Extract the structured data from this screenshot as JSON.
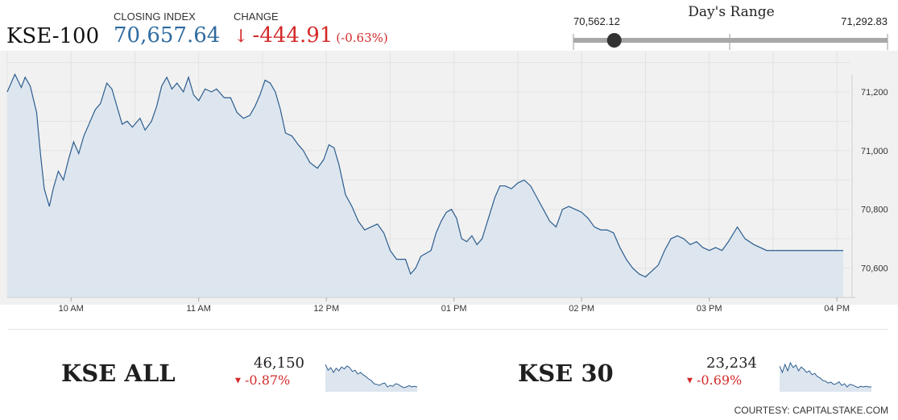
{
  "header": {
    "index_name": "KSE-100",
    "closing_label": "CLOSING INDEX",
    "closing_value": "70,657.64",
    "change_label": "CHANGE",
    "change_value": "-444.91",
    "change_pct": "(-0.63%)",
    "change_direction_icon": "arrow-down-icon"
  },
  "days_range": {
    "title": "Day's Range",
    "low": "70,562.12",
    "high": "71,292.83",
    "current_position_fraction": 0.13
  },
  "chart_data": {
    "type": "area",
    "title": "",
    "xlabel": "",
    "ylabel": "",
    "x_ticks": [
      "10 AM",
      "11 AM",
      "12 PM",
      "01 PM",
      "02 PM",
      "03 PM",
      "04 PM"
    ],
    "y_ticks": [
      "71,200",
      "71,000",
      "70,800",
      "70,600"
    ],
    "ylim": [
      70500,
      71340
    ],
    "xlim": [
      9.5,
      16.1
    ],
    "grid": true,
    "series": [
      {
        "line_color": "#2d5d8e",
        "fill_color": "#dde6ef",
        "points": [
          [
            9.5,
            71200
          ],
          [
            9.56,
            71260
          ],
          [
            9.61,
            71215
          ],
          [
            9.64,
            71250
          ],
          [
            9.68,
            71220
          ],
          [
            9.73,
            71130
          ],
          [
            9.76,
            70990
          ],
          [
            9.79,
            70870
          ],
          [
            9.83,
            70810
          ],
          [
            9.86,
            70870
          ],
          [
            9.9,
            70930
          ],
          [
            9.94,
            70900
          ],
          [
            9.98,
            70970
          ],
          [
            10.02,
            71030
          ],
          [
            10.06,
            70990
          ],
          [
            10.1,
            71050
          ],
          [
            10.15,
            71100
          ],
          [
            10.19,
            71140
          ],
          [
            10.23,
            71160
          ],
          [
            10.28,
            71230
          ],
          [
            10.32,
            71210
          ],
          [
            10.36,
            71150
          ],
          [
            10.4,
            71090
          ],
          [
            10.44,
            71100
          ],
          [
            10.48,
            71080
          ],
          [
            10.54,
            71110
          ],
          [
            10.58,
            71070
          ],
          [
            10.63,
            71100
          ],
          [
            10.67,
            71150
          ],
          [
            10.71,
            71220
          ],
          [
            10.75,
            71250
          ],
          [
            10.79,
            71210
          ],
          [
            10.83,
            71230
          ],
          [
            10.88,
            71200
          ],
          [
            10.92,
            71250
          ],
          [
            10.96,
            71190
          ],
          [
            11.0,
            71170
          ],
          [
            11.05,
            71210
          ],
          [
            11.1,
            71200
          ],
          [
            11.14,
            71210
          ],
          [
            11.2,
            71180
          ],
          [
            11.25,
            71180
          ],
          [
            11.3,
            71130
          ],
          [
            11.35,
            71110
          ],
          [
            11.4,
            71120
          ],
          [
            11.44,
            71150
          ],
          [
            11.48,
            71190
          ],
          [
            11.52,
            71240
          ],
          [
            11.56,
            71230
          ],
          [
            11.6,
            71200
          ],
          [
            11.64,
            71140
          ],
          [
            11.68,
            71060
          ],
          [
            11.73,
            71050
          ],
          [
            11.78,
            71020
          ],
          [
            11.82,
            71000
          ],
          [
            11.87,
            70960
          ],
          [
            11.93,
            70940
          ],
          [
            11.98,
            70970
          ],
          [
            12.02,
            71020
          ],
          [
            12.06,
            71010
          ],
          [
            12.1,
            70950
          ],
          [
            12.15,
            70850
          ],
          [
            12.2,
            70810
          ],
          [
            12.25,
            70760
          ],
          [
            12.3,
            70730
          ],
          [
            12.35,
            70740
          ],
          [
            12.4,
            70750
          ],
          [
            12.45,
            70720
          ],
          [
            12.5,
            70660
          ],
          [
            12.55,
            70630
          ],
          [
            12.62,
            70630
          ],
          [
            12.66,
            70580
          ],
          [
            12.7,
            70600
          ],
          [
            12.74,
            70640
          ],
          [
            12.78,
            70650
          ],
          [
            12.82,
            70660
          ],
          [
            12.86,
            70720
          ],
          [
            12.9,
            70760
          ],
          [
            12.94,
            70790
          ],
          [
            12.98,
            70800
          ],
          [
            13.02,
            70770
          ],
          [
            13.06,
            70700
          ],
          [
            13.1,
            70690
          ],
          [
            13.14,
            70710
          ],
          [
            13.18,
            70680
          ],
          [
            13.22,
            70700
          ],
          [
            13.27,
            70770
          ],
          [
            13.32,
            70840
          ],
          [
            13.36,
            70880
          ],
          [
            13.4,
            70880
          ],
          [
            13.45,
            70870
          ],
          [
            13.5,
            70890
          ],
          [
            13.55,
            70900
          ],
          [
            13.6,
            70880
          ],
          [
            13.65,
            70840
          ],
          [
            13.7,
            70800
          ],
          [
            13.75,
            70760
          ],
          [
            13.8,
            70740
          ],
          [
            13.85,
            70800
          ],
          [
            13.9,
            70810
          ],
          [
            13.95,
            70800
          ],
          [
            14.0,
            70790
          ],
          [
            14.05,
            70770
          ],
          [
            14.1,
            70740
          ],
          [
            14.15,
            70730
          ],
          [
            14.2,
            70730
          ],
          [
            14.25,
            70720
          ],
          [
            14.3,
            70670
          ],
          [
            14.35,
            70630
          ],
          [
            14.4,
            70600
          ],
          [
            14.45,
            70580
          ],
          [
            14.5,
            70570
          ],
          [
            14.55,
            70590
          ],
          [
            14.6,
            70610
          ],
          [
            14.65,
            70660
          ],
          [
            14.7,
            70700
          ],
          [
            14.75,
            70710
          ],
          [
            14.8,
            70700
          ],
          [
            14.85,
            70680
          ],
          [
            14.9,
            70690
          ],
          [
            14.95,
            70670
          ],
          [
            15.0,
            70660
          ],
          [
            15.05,
            70670
          ],
          [
            15.1,
            70660
          ],
          [
            15.15,
            70690
          ],
          [
            15.22,
            70740
          ],
          [
            15.28,
            70700
          ],
          [
            15.35,
            70680
          ],
          [
            15.45,
            70660
          ],
          [
            15.55,
            70660
          ],
          [
            16.05,
            70660
          ]
        ]
      }
    ]
  },
  "tickers": [
    {
      "name": "KSE ALL",
      "value": "46,150",
      "change": "-0.87%",
      "arrow_icon": "triangle-down-icon",
      "spark": [
        0.8,
        0.62,
        0.7,
        0.55,
        0.68,
        0.6,
        0.72,
        0.66,
        0.75,
        0.7,
        0.58,
        0.62,
        0.5,
        0.55,
        0.48,
        0.42,
        0.35,
        0.3,
        0.2,
        0.18,
        0.15,
        0.2,
        0.22,
        0.1,
        0.15,
        0.12,
        0.2,
        0.18,
        0.12,
        0.08,
        0.1,
        0.14,
        0.1,
        0.12,
        0.1
      ]
    },
    {
      "name": "KSE 30",
      "value": "23,234",
      "change": "-0.69%",
      "arrow_icon": "triangle-down-icon",
      "spark": [
        0.75,
        0.55,
        0.8,
        0.6,
        0.85,
        0.7,
        0.78,
        0.6,
        0.72,
        0.65,
        0.55,
        0.6,
        0.48,
        0.52,
        0.42,
        0.38,
        0.3,
        0.28,
        0.22,
        0.25,
        0.18,
        0.2,
        0.26,
        0.15,
        0.2,
        0.1,
        0.18,
        0.16,
        0.12,
        0.08,
        0.12,
        0.1,
        0.12,
        0.1,
        0.1
      ]
    }
  ],
  "footer": {
    "courtesy": "COURTESY: CAPITALSTAKE.COM"
  }
}
